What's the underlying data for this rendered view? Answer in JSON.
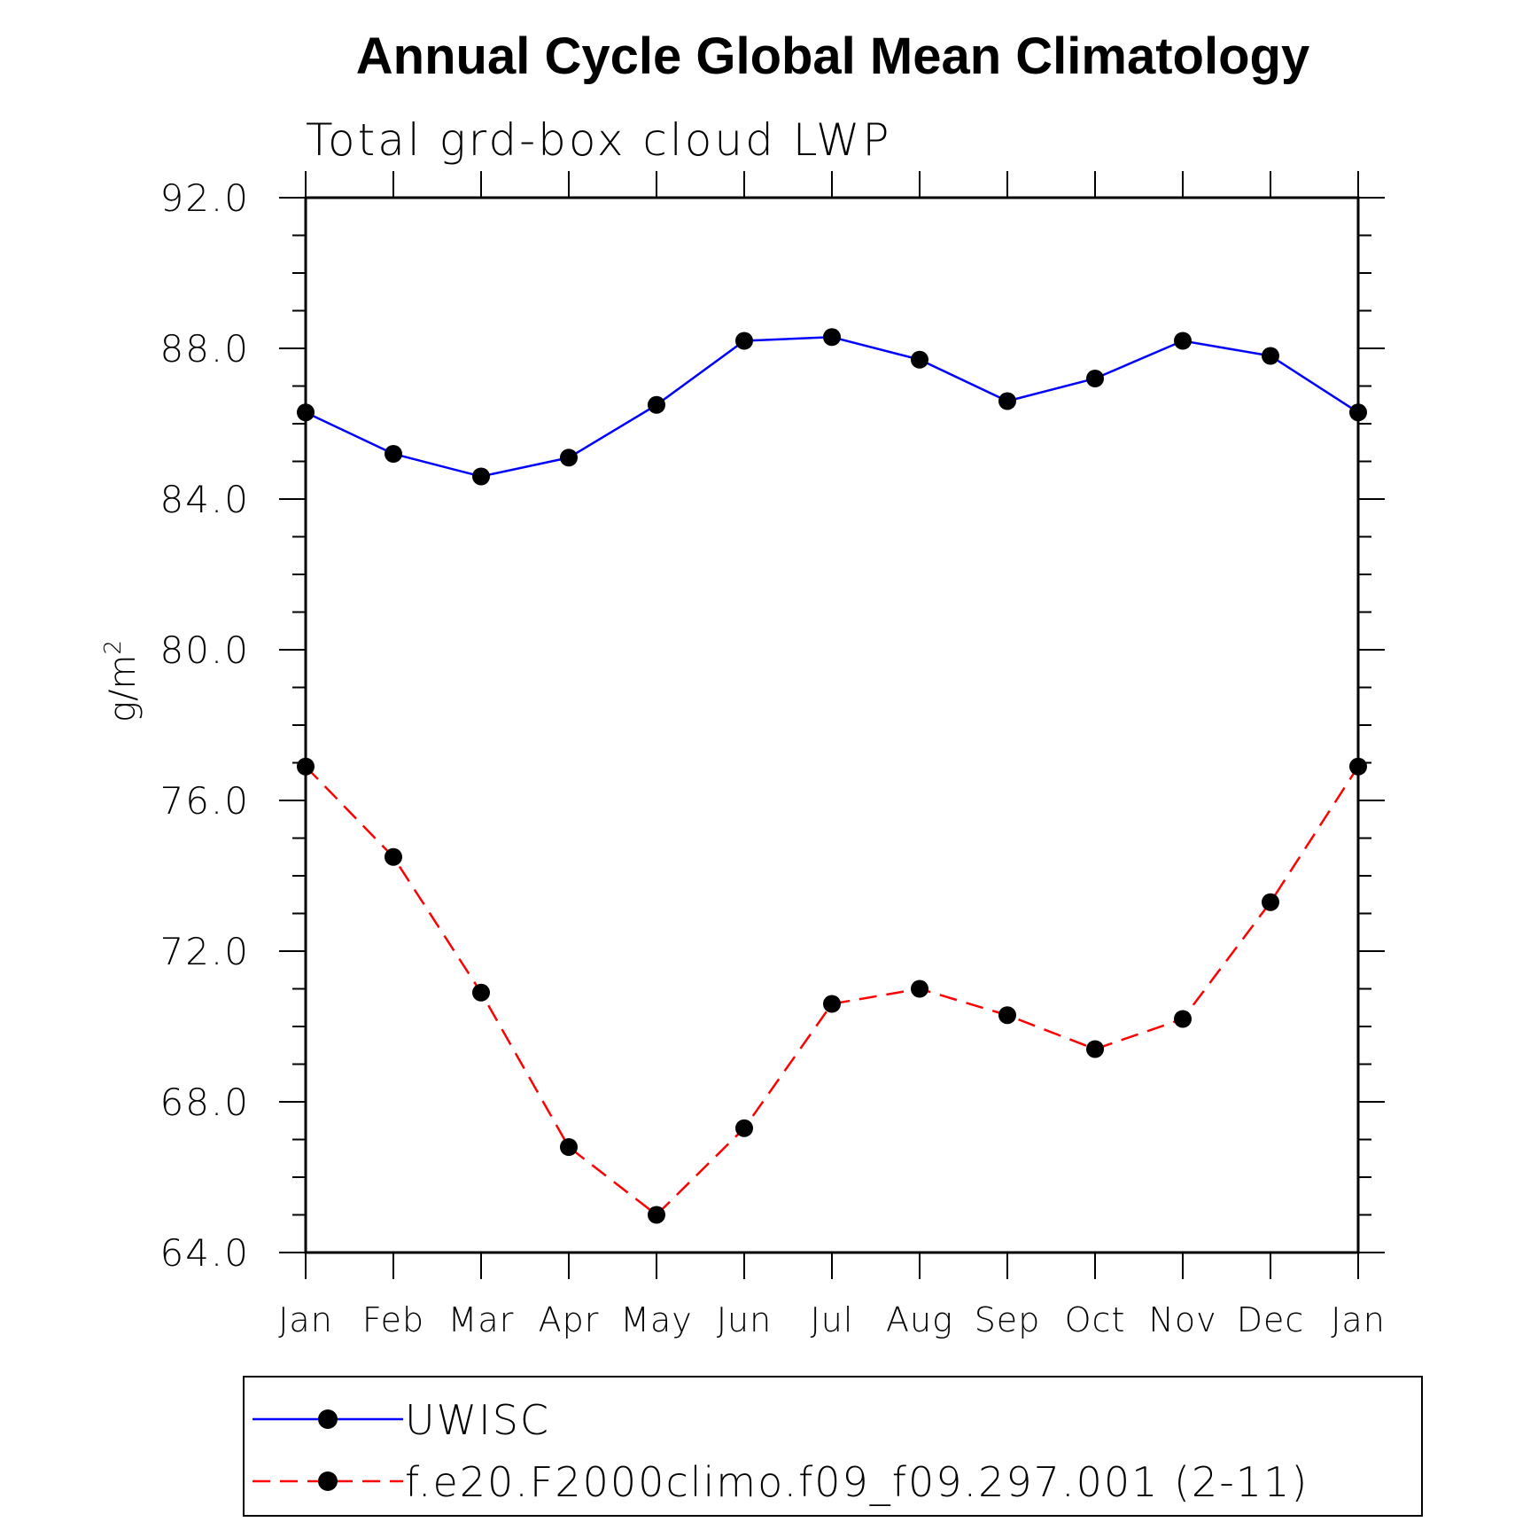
{
  "chart_data": {
    "type": "line",
    "title": "Annual Cycle Global Mean Climatology",
    "subtitle": "Total grd-box cloud LWP",
    "ylabel": "g/m",
    "ylabel_superscript": "2",
    "xlabel": "",
    "categories": [
      "Jan",
      "Feb",
      "Mar",
      "Apr",
      "May",
      "Jun",
      "Jul",
      "Aug",
      "Sep",
      "Oct",
      "Nov",
      "Dec",
      "Jan"
    ],
    "ylim": [
      64.0,
      92.0
    ],
    "yticks": [
      "64.0",
      "68.0",
      "72.0",
      "76.0",
      "80.0",
      "84.0",
      "88.0",
      "92.0"
    ],
    "ytick_values": [
      64,
      68,
      72,
      76,
      80,
      84,
      88,
      92
    ],
    "grid": false,
    "legend_position": "bottom",
    "series": [
      {
        "name": "UWISC",
        "color": "#0000ff",
        "dash": "solid",
        "marker": "filled-circle",
        "values": [
          86.3,
          85.2,
          84.6,
          85.1,
          86.5,
          88.2,
          88.3,
          87.7,
          86.6,
          87.2,
          88.2,
          87.8,
          86.3
        ]
      },
      {
        "name": "f.e20.F2000climo.f09_f09.297.001 (2-11)",
        "color": "#ff0000",
        "dash": "dashed",
        "marker": "filled-circle",
        "values": [
          76.9,
          74.5,
          70.9,
          66.8,
          65.0,
          67.3,
          70.6,
          71.0,
          70.3,
          69.4,
          70.2,
          73.3,
          76.9
        ]
      }
    ]
  }
}
